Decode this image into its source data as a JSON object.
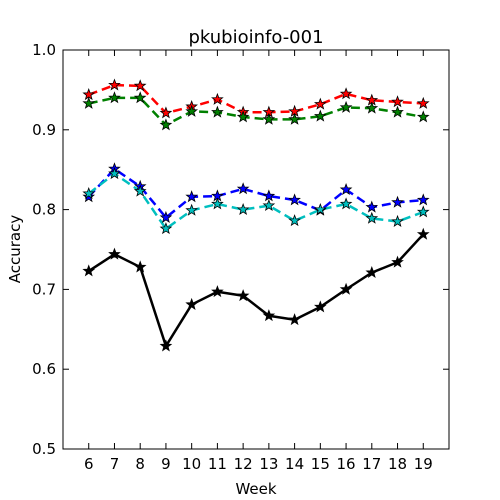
{
  "chart_data": {
    "type": "line",
    "title": "pkubioinfo-001",
    "xlabel": "Week",
    "ylabel": "Accuracy",
    "x": [
      6,
      7,
      8,
      9,
      10,
      11,
      12,
      13,
      14,
      15,
      16,
      17,
      18,
      19
    ],
    "xlim": [
      5,
      20
    ],
    "ylim": [
      0.5,
      1.0
    ],
    "yticks": [
      "0.5",
      "0.6",
      "0.7",
      "0.8",
      "0.9",
      "1.0"
    ],
    "xticks": [
      "6",
      "7",
      "8",
      "9",
      "10",
      "11",
      "12",
      "13",
      "14",
      "15",
      "16",
      "17",
      "18",
      "19"
    ],
    "grid": false,
    "series": [
      {
        "color": "#ff0000",
        "dashed": true,
        "values": [
          0.944,
          0.956,
          0.955,
          0.921,
          0.929,
          0.938,
          0.922,
          0.922,
          0.923,
          0.932,
          0.945,
          0.937,
          0.935,
          0.933
        ]
      },
      {
        "color": "#008000",
        "dashed": true,
        "values": [
          0.933,
          0.94,
          0.94,
          0.906,
          0.923,
          0.922,
          0.916,
          0.913,
          0.913,
          0.917,
          0.928,
          0.927,
          0.922,
          0.916
        ]
      },
      {
        "color": "#0000ff",
        "dashed": true,
        "values": [
          0.816,
          0.851,
          0.829,
          0.79,
          0.816,
          0.817,
          0.826,
          0.817,
          0.812,
          0.799,
          0.825,
          0.803,
          0.809,
          0.812
        ]
      },
      {
        "color": "#00bfbf",
        "dashed": true,
        "values": [
          0.82,
          0.845,
          0.823,
          0.776,
          0.799,
          0.807,
          0.8,
          0.805,
          0.786,
          0.8,
          0.807,
          0.789,
          0.785,
          0.797
        ]
      },
      {
        "color": "#000000",
        "dashed": false,
        "values": [
          0.723,
          0.744,
          0.728,
          0.629,
          0.681,
          0.697,
          0.692,
          0.667,
          0.662,
          0.678,
          0.7,
          0.721,
          0.734,
          0.769
        ]
      }
    ]
  }
}
